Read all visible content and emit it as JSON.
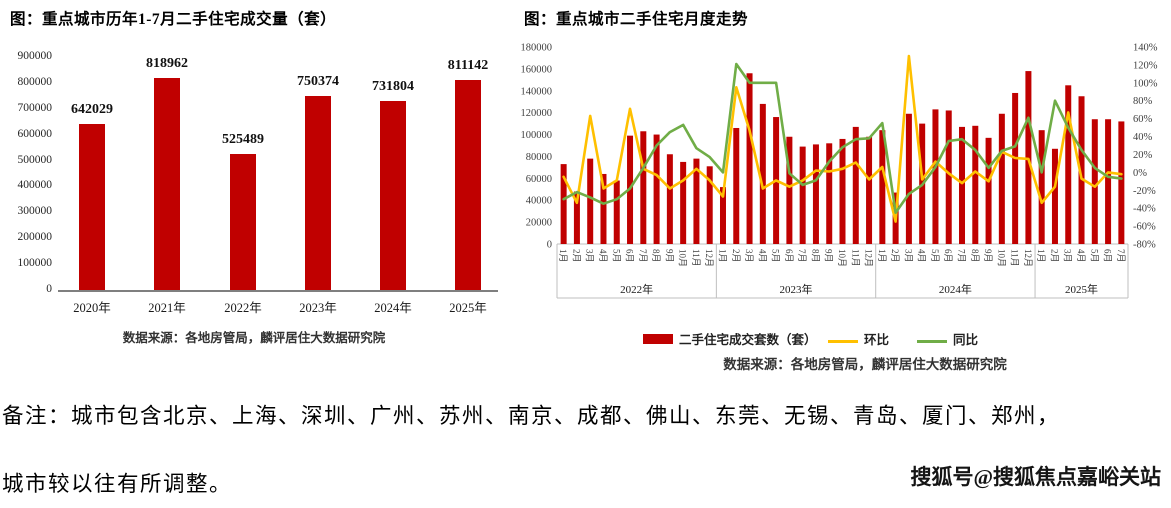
{
  "left_chart": {
    "title": "图：重点城市历年1-7月二手住宅成交量（套）",
    "source": "数据来源：各地房管局，麟评居住大数据研究院"
  },
  "right_chart": {
    "title": "图：重点城市二手住宅月度走势",
    "source": "数据来源：各地房管局，麟评居住大数据研究院"
  },
  "note": {
    "line1": "备注：城市包含北京、上海、深圳、广州、苏州、南京、成都、佛山、东莞、无锡、青岛、厦门、郑州，",
    "line2": "城市较以往有所调整。"
  },
  "watermark": {
    "text": "搜狐号@搜狐焦点嘉峪关站"
  },
  "colors": {
    "bar": "#c00000",
    "mom_line": "#ffc000",
    "yoy_line": "#70ad47"
  },
  "chart_data": [
    {
      "type": "bar",
      "title": "图：重点城市历年1-7月二手住宅成交量（套）",
      "categories": [
        "2020年",
        "2021年",
        "2022年",
        "2023年",
        "2024年",
        "2025年"
      ],
      "values": [
        642029,
        818962,
        525489,
        750374,
        731804,
        811142
      ],
      "data_labels": [
        "642029",
        "818962",
        "525489",
        "750374",
        "731804",
        "811142"
      ],
      "xlabel": "",
      "ylabel": "",
      "ylim": [
        0,
        900000
      ],
      "ytick_step": 100000,
      "bar_color": "#c00000",
      "grid": false,
      "source": "数据来源：各地房管局，麟评居住大数据研究院"
    },
    {
      "type": "bar+line",
      "title": "图：重点城市二手住宅月度走势",
      "categories": [
        "1月",
        "2月",
        "3月",
        "4月",
        "5月",
        "6月",
        "7月",
        "8月",
        "9月",
        "10月",
        "11月",
        "12月",
        "1月",
        "2月",
        "3月",
        "4月",
        "5月",
        "6月",
        "7月",
        "8月",
        "9月",
        "10月",
        "11月",
        "12月",
        "1月",
        "2月",
        "3月",
        "4月",
        "5月",
        "6月",
        "7月",
        "8月",
        "9月",
        "10月",
        "11月",
        "12月",
        "1月",
        "2月",
        "3月",
        "4月",
        "5月",
        "6月",
        "7月"
      ],
      "year_groups": [
        {
          "label": "2022年",
          "count": 12
        },
        {
          "label": "2023年",
          "count": 12
        },
        {
          "label": "2024年",
          "count": 12
        },
        {
          "label": "2025年",
          "count": 7
        }
      ],
      "series": [
        {
          "name": "二手住宅成交套数（套）",
          "type": "bar",
          "axis": "left",
          "color": "#c00000",
          "values": [
            73000,
            48000,
            78000,
            64000,
            58000,
            99000,
            103000,
            100000,
            82000,
            75000,
            78000,
            71000,
            52000,
            106000,
            156000,
            128000,
            116000,
            98000,
            89000,
            91000,
            92000,
            96000,
            107000,
            98000,
            104000,
            47000,
            119000,
            110000,
            123000,
            122000,
            107000,
            108000,
            97000,
            119000,
            138000,
            158000,
            104000,
            87000,
            145000,
            135000,
            114000,
            114000,
            112000
          ]
        },
        {
          "name": "环比",
          "type": "line",
          "axis": "right",
          "color": "#ffc000",
          "unit": "%",
          "values": [
            -5,
            -34,
            63,
            -18,
            -9,
            71,
            4,
            -3,
            -18,
            -9,
            4,
            -9,
            -27,
            95,
            47,
            -18,
            -9,
            -16,
            -9,
            2,
            1,
            4,
            11,
            -8,
            6,
            -55,
            130,
            -8,
            12,
            -1,
            -12,
            1,
            -10,
            23,
            16,
            15,
            -34,
            -16,
            67,
            -7,
            -16,
            0,
            -2
          ]
        },
        {
          "name": "同比",
          "type": "line",
          "axis": "right",
          "color": "#70ad47",
          "unit": "%",
          "values": [
            -30,
            -22,
            -28,
            -35,
            -30,
            -18,
            5,
            30,
            45,
            53,
            27,
            17,
            0,
            121,
            100,
            100,
            100,
            -1,
            -14,
            -9,
            12,
            28,
            37,
            38,
            55,
            -45,
            -24,
            -14,
            6,
            35,
            37,
            25,
            5,
            24,
            29,
            61,
            0,
            80,
            50,
            25,
            5,
            -5,
            -7
          ]
        }
      ],
      "left_ylim": [
        0,
        180000
      ],
      "left_ytick_step": 20000,
      "right_ylim": [
        -80,
        140
      ],
      "right_ytick_step": 20,
      "right_unit": "%",
      "grid": false,
      "legend_position": "bottom",
      "source": "数据来源：各地房管局，麟评居住大数据研究院"
    }
  ]
}
